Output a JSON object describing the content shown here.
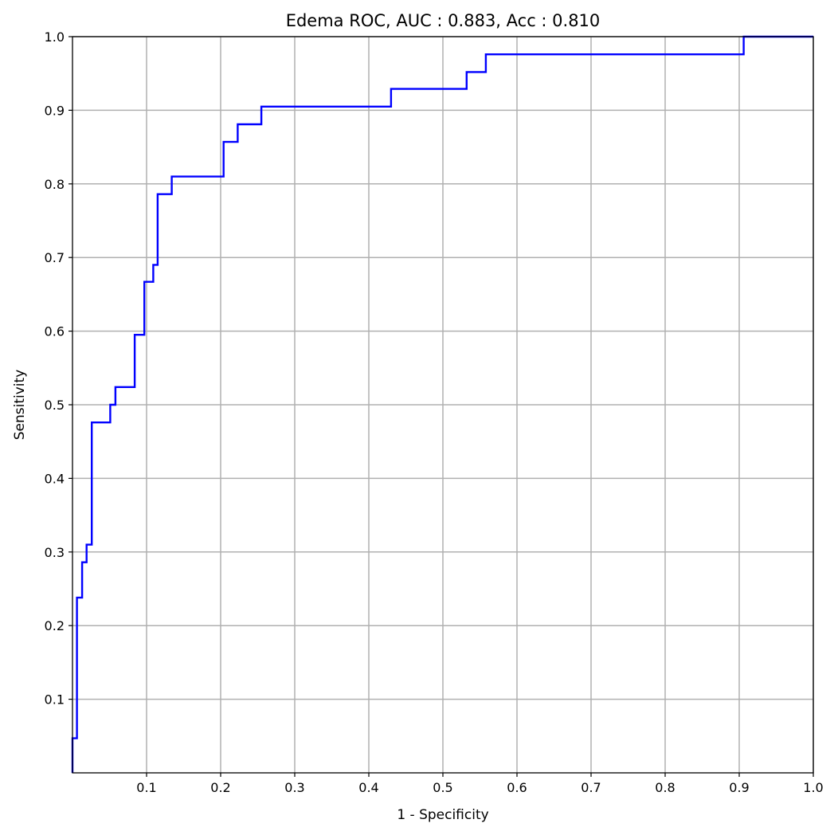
{
  "chart_data": {
    "type": "line",
    "title": "Edema ROC, AUC : 0.883, Acc : 0.810",
    "xlabel": "1 - Specificity",
    "ylabel": "Sensitivity",
    "xlim": [
      0,
      1
    ],
    "ylim": [
      0,
      1
    ],
    "grid": true,
    "x_ticks": [
      0.1,
      0.2,
      0.3,
      0.4,
      0.5,
      0.6,
      0.7,
      0.8,
      0.9,
      1.0
    ],
    "x_tick_labels": [
      "0.1",
      "0.2",
      "0.3",
      "0.4",
      "0.5",
      "0.6",
      "0.7",
      "0.8",
      "0.9",
      "1.0"
    ],
    "y_ticks": [
      0.1,
      0.2,
      0.3,
      0.4,
      0.5,
      0.6,
      0.7,
      0.8,
      0.9,
      1.0
    ],
    "y_tick_labels": [
      "0.1",
      "0.2",
      "0.3",
      "0.4",
      "0.5",
      "0.6",
      "0.7",
      "0.8",
      "0.9",
      "1.0"
    ],
    "line_color": "#0000ff",
    "series": [
      {
        "x": [
          0,
          0,
          0.006,
          0.006,
          0.013,
          0.013,
          0.019,
          0.019,
          0.026,
          0.026,
          0.051,
          0.051,
          0.058,
          0.058,
          0.084,
          0.084,
          0.097,
          0.097,
          0.109,
          0.109,
          0.115,
          0.115,
          0.134,
          0.134,
          0.204,
          0.204,
          0.223,
          0.223,
          0.255,
          0.255,
          0.43,
          0.43,
          0.532,
          0.532,
          0.558,
          0.558,
          0.906,
          0.906,
          1.0
        ],
        "y": [
          0,
          0.047,
          0.047,
          0.238,
          0.238,
          0.286,
          0.286,
          0.31,
          0.31,
          0.476,
          0.476,
          0.5,
          0.5,
          0.524,
          0.524,
          0.595,
          0.595,
          0.667,
          0.667,
          0.69,
          0.69,
          0.786,
          0.786,
          0.81,
          0.81,
          0.857,
          0.857,
          0.881,
          0.881,
          0.905,
          0.905,
          0.929,
          0.929,
          0.952,
          0.952,
          0.976,
          0.976,
          1.0,
          1.0
        ]
      }
    ]
  }
}
